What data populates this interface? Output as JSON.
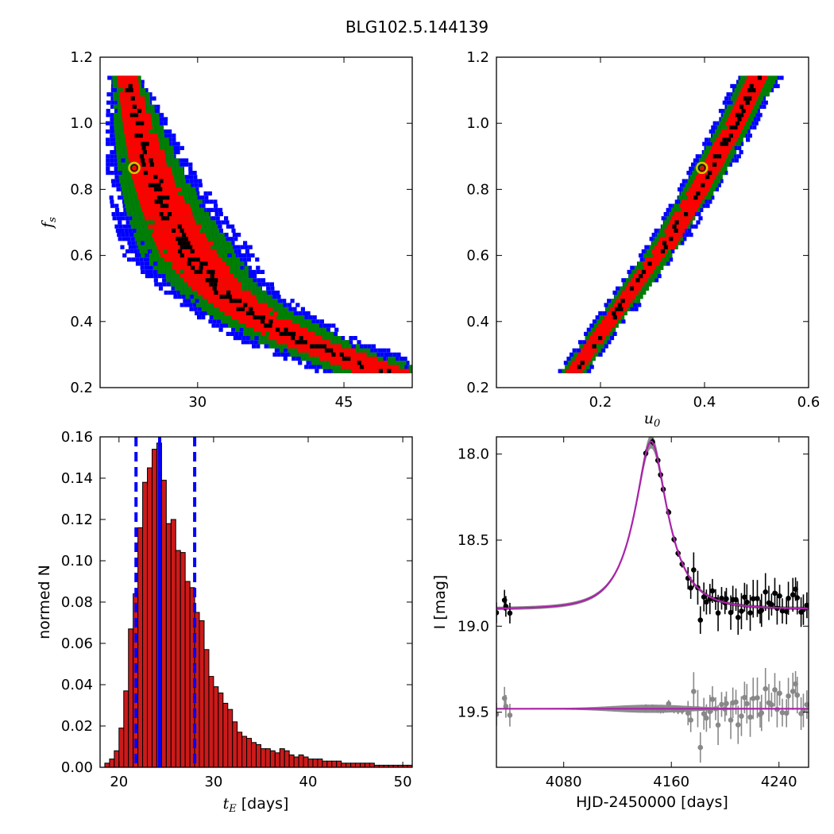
{
  "title": "BLG102.5.144139",
  "chart_data": [
    {
      "id": "panel-ts-fs",
      "type": "heatmap",
      "xlabel": "",
      "ylabel": "f_s",
      "xlim": [
        20,
        52
      ],
      "ylim": [
        0.2,
        1.2
      ],
      "xticks": [
        30,
        45
      ],
      "yticks": [
        0.2,
        0.4,
        0.6,
        0.8,
        1.0,
        1.2
      ],
      "ytick_labels": [
        "0.2",
        "0.4",
        "0.6",
        "0.8",
        "1.0",
        "1.2"
      ],
      "best_fit": {
        "x": 23.5,
        "y": 0.865
      },
      "colors": {
        "outer": "#0000ff",
        "mid": "#008000",
        "inner": "#ff0000",
        "core": "#000000",
        "marker": "#c8c800"
      },
      "ridge": [
        [
          22.5,
          1.14
        ],
        [
          23.6,
          1.0
        ],
        [
          25.0,
          0.85
        ],
        [
          26.8,
          0.72
        ],
        [
          29.0,
          0.6
        ],
        [
          31.8,
          0.5
        ],
        [
          35.5,
          0.42
        ],
        [
          40.5,
          0.34
        ],
        [
          48.5,
          0.25
        ]
      ]
    },
    {
      "id": "panel-u0-fs",
      "type": "heatmap",
      "xlabel": "u_0",
      "ylabel": "",
      "xlim": [
        0.0,
        0.6
      ],
      "ylim": [
        0.2,
        1.2
      ],
      "xticks": [
        0.2,
        0.4,
        0.6
      ],
      "xtick_labels": [
        "0.2",
        "0.4",
        "0.6"
      ],
      "yticks": [
        0.2,
        0.4,
        0.6,
        0.8,
        1.0,
        1.2
      ],
      "ytick_labels": [
        "0.2",
        "0.4",
        "0.6",
        "0.8",
        "1.0",
        "1.2"
      ],
      "best_fit": {
        "x": 0.395,
        "y": 0.865
      },
      "ridge": [
        [
          0.145,
          0.25
        ],
        [
          0.2,
          0.37
        ],
        [
          0.26,
          0.5
        ],
        [
          0.32,
          0.63
        ],
        [
          0.37,
          0.76
        ],
        [
          0.41,
          0.87
        ],
        [
          0.45,
          0.98
        ],
        [
          0.5,
          1.14
        ]
      ]
    },
    {
      "id": "panel-hist",
      "type": "bar",
      "xlabel": "t_E [days]",
      "ylabel": "normed N",
      "xlim": [
        18.0,
        51.0
      ],
      "ylim": [
        0.0,
        0.16
      ],
      "xticks": [
        20,
        30,
        40,
        50
      ],
      "yticks": [
        0.0,
        0.02,
        0.04,
        0.06,
        0.08,
        0.1,
        0.12,
        0.14,
        0.16
      ],
      "ytick_labels": [
        "0.00",
        "0.02",
        "0.04",
        "0.06",
        "0.08",
        "0.10",
        "0.12",
        "0.14",
        "0.16"
      ],
      "bin_start": 18.0,
      "bin_width": 0.5,
      "values": [
        0.0,
        0.002,
        0.004,
        0.008,
        0.019,
        0.037,
        0.067,
        0.084,
        0.116,
        0.138,
        0.145,
        0.154,
        0.157,
        0.139,
        0.118,
        0.12,
        0.105,
        0.104,
        0.09,
        0.087,
        0.075,
        0.071,
        0.057,
        0.044,
        0.039,
        0.036,
        0.031,
        0.028,
        0.022,
        0.017,
        0.015,
        0.014,
        0.012,
        0.011,
        0.009,
        0.009,
        0.008,
        0.007,
        0.009,
        0.008,
        0.006,
        0.005,
        0.006,
        0.005,
        0.004,
        0.004,
        0.004,
        0.003,
        0.003,
        0.003,
        0.003,
        0.002,
        0.002,
        0.002,
        0.002,
        0.002,
        0.002,
        0.002,
        0.001,
        0.001,
        0.001,
        0.001,
        0.001,
        0.001,
        0.001,
        0.001
      ],
      "median": 24.3,
      "lower": 21.8,
      "upper": 28.0,
      "colors": {
        "bar": "#cc1a1a",
        "median": "#0000ff"
      }
    },
    {
      "id": "panel-lightcurve",
      "type": "scatter",
      "xlabel": "HJD-2450000 [days]",
      "ylabel": "I [mag]",
      "xlim": [
        4030,
        4262
      ],
      "ylim": [
        19.82,
        17.9
      ],
      "xticks": [
        4080,
        4160,
        4240
      ],
      "yticks": [
        18.0,
        18.5,
        19.0,
        19.5
      ],
      "ytick_labels": [
        "18.0",
        "18.5",
        "19.0",
        "19.5"
      ],
      "model": {
        "t0": 4145,
        "tE": 24.3,
        "u0": 0.395,
        "fs": 0.865,
        "base": 18.9,
        "resid_level": 19.48
      },
      "colors": {
        "data": "#000000",
        "residual": "#888888",
        "model": "#aa22aa",
        "band": "#8c8c8c"
      }
    }
  ]
}
